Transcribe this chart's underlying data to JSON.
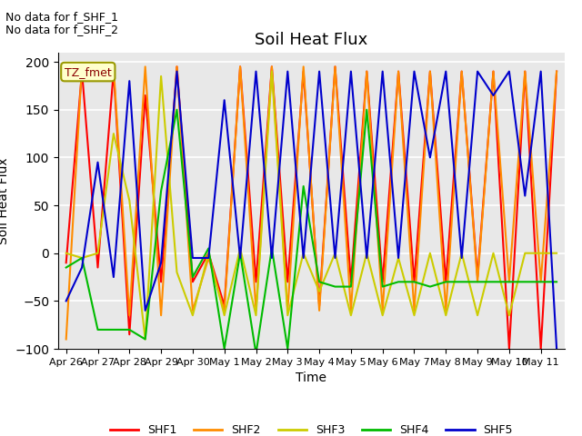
{
  "title": "Soil Heat Flux",
  "xlabel": "Time",
  "ylabel": "Soil Heat Flux",
  "annotation_lines": [
    "No data for f_SHF_1",
    "No data for f_SHF_2"
  ],
  "box_label": "TZ_fmet",
  "ylim": [
    -100,
    210
  ],
  "series_colors": {
    "SHF1": "#ff0000",
    "SHF2": "#ff8c00",
    "SHF3": "#cccc00",
    "SHF4": "#00bb00",
    "SHF5": "#0000cc"
  },
  "tick_labels": [
    "Apr 26",
    "Apr 27",
    "Apr 28",
    "Apr 29",
    "Apr 30",
    "May 1",
    "May 2",
    "May 3",
    "May 4",
    "May 5",
    "May 6",
    "May 7",
    "May 8",
    "May 9",
    "May 10",
    "May 11"
  ],
  "SHF1": [
    -10,
    190,
    -15,
    190,
    -85,
    165,
    -30,
    195,
    -30,
    0,
    -55,
    195,
    -30,
    195,
    -30,
    190,
    -55,
    195,
    -30,
    190,
    -30,
    190,
    -30,
    190,
    -30,
    190,
    -25,
    190,
    -100,
    190,
    -100,
    190
  ],
  "SHF2": [
    -90,
    195,
    190,
    195,
    -65,
    195,
    -65,
    195,
    -60,
    -5,
    -60,
    195,
    -60,
    195,
    -60,
    195,
    -60,
    195,
    -60,
    190,
    -60,
    190,
    -60,
    190,
    -60,
    190,
    -30,
    190,
    -30,
    190,
    -30,
    190
  ],
  "SHF3": [
    0,
    -5,
    0,
    125,
    55,
    -90,
    185,
    -20,
    -65,
    0,
    -65,
    5,
    -65,
    190,
    -65,
    0,
    -40,
    0,
    -65,
    0,
    -65,
    -5,
    -65,
    0,
    -65,
    0,
    -65,
    0,
    -65,
    0,
    0,
    0
  ],
  "SHF4": [
    -15,
    -5,
    -80,
    -80,
    -80,
    -90,
    65,
    150,
    -25,
    5,
    -100,
    0,
    -105,
    5,
    -100,
    70,
    -30,
    -35,
    -35,
    150,
    -35,
    -30,
    -30,
    -35,
    -30,
    -30,
    -30,
    -30,
    -30,
    -30,
    -30,
    -30
  ],
  "SHF5": [
    -50,
    -15,
    95,
    -25,
    180,
    -60,
    -10,
    190,
    -5,
    -5,
    160,
    -5,
    190,
    -5,
    190,
    -5,
    190,
    -5,
    190,
    -5,
    190,
    -5,
    190,
    100,
    190,
    -5,
    190,
    165,
    190,
    60,
    190,
    -100
  ],
  "n_points": 32,
  "background_color": "#e8e8e8"
}
